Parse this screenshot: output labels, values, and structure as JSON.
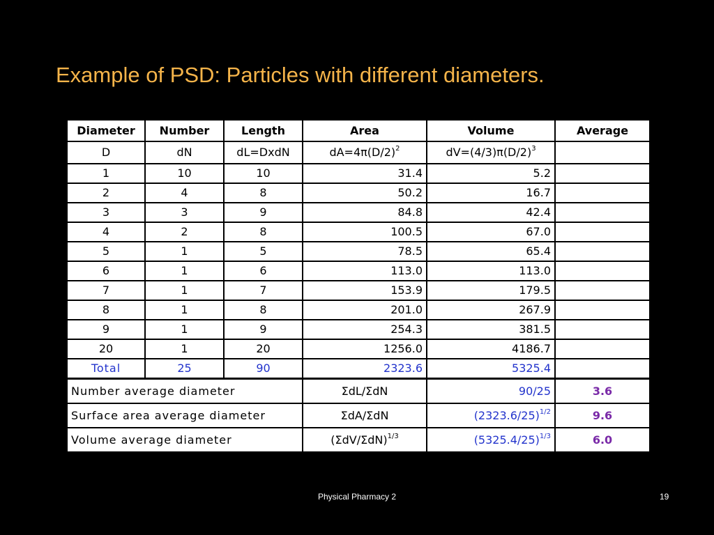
{
  "slide": {
    "title": "Example of PSD: Particles with different diameters.",
    "footer_text": "Physical Pharmacy 2",
    "page_number": "19",
    "title_color": "#f5b44a"
  },
  "table": {
    "headers": [
      "Diameter",
      "Number",
      "Length",
      "Area",
      "Volume",
      "Average"
    ],
    "symbols": {
      "d": "D",
      "dn": "dN",
      "dl": "dL=DxdN",
      "da_base": "dA=4π(D/2)",
      "da_exp": "2",
      "dv_base": "dV=(4/3)π(D/2)",
      "dv_exp": "3"
    },
    "rows": [
      {
        "d": "1",
        "n": "10",
        "l": "10",
        "a": "31.4",
        "v": "5.2"
      },
      {
        "d": "2",
        "n": "4",
        "l": "8",
        "a": "50.2",
        "v": "16.7"
      },
      {
        "d": "3",
        "n": "3",
        "l": "9",
        "a": "84.8",
        "v": "42.4"
      },
      {
        "d": "4",
        "n": "2",
        "l": "8",
        "a": "100.5",
        "v": "67.0"
      },
      {
        "d": "5",
        "n": "1",
        "l": "5",
        "a": "78.5",
        "v": "65.4"
      },
      {
        "d": "6",
        "n": "1",
        "l": "6",
        "a": "113.0",
        "v": "113.0"
      },
      {
        "d": "7",
        "n": "1",
        "l": "7",
        "a": "153.9",
        "v": "179.5"
      },
      {
        "d": "8",
        "n": "1",
        "l": "8",
        "a": "201.0",
        "v": "267.9"
      },
      {
        "d": "9",
        "n": "1",
        "l": "9",
        "a": "254.3",
        "v": "381.5"
      },
      {
        "d": "20",
        "n": "1",
        "l": "20",
        "a": "1256.0",
        "v": "4186.7"
      }
    ],
    "total": {
      "label": "Total",
      "n": "25",
      "l": "90",
      "a": "2323.6",
      "v": "5325.4"
    },
    "averages": [
      {
        "label": "Number average diameter",
        "formula_base": "ΣdL/ΣdN",
        "formula_exp": "",
        "calc_base": "90/25",
        "calc_exp": "",
        "value": "3.6"
      },
      {
        "label": "Surface area average diameter",
        "formula_base": "ΣdA/ΣdN",
        "formula_exp": "",
        "calc_base": "(2323.6/25)",
        "calc_exp": "1/2",
        "value": "9.6"
      },
      {
        "label": "Volume average diameter",
        "formula_base": "(ΣdV/ΣdN)",
        "formula_exp": "1/3",
        "calc_base": "(5325.4/25)",
        "calc_exp": "1/3",
        "value": "6.0"
      }
    ],
    "colors": {
      "total_text": "#2233cc",
      "average_value": "#7a2aa8"
    }
  }
}
